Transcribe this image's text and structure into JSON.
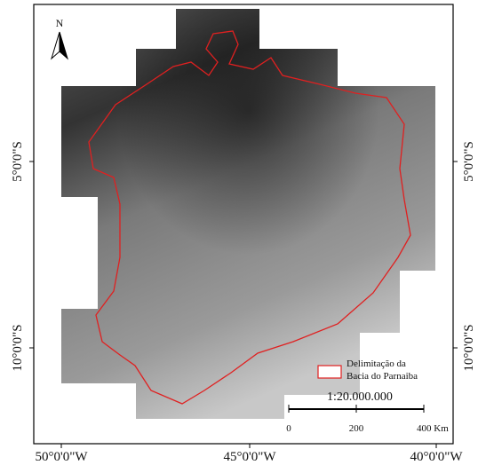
{
  "map": {
    "north_label": "N",
    "latitude_labels": [
      "5°0'0\"S",
      "10°0'0\"S"
    ],
    "longitude_labels": [
      "50°0'0\"W",
      "45°0'0\"W",
      "40°0'0\"W"
    ],
    "legend": {
      "label_lines": [
        "Delimitação da",
        "Bacia do Parnaiba"
      ]
    },
    "scale": {
      "ratio": "1:20.000.000",
      "ticks": [
        "0",
        "200",
        "400 Km"
      ]
    }
  }
}
